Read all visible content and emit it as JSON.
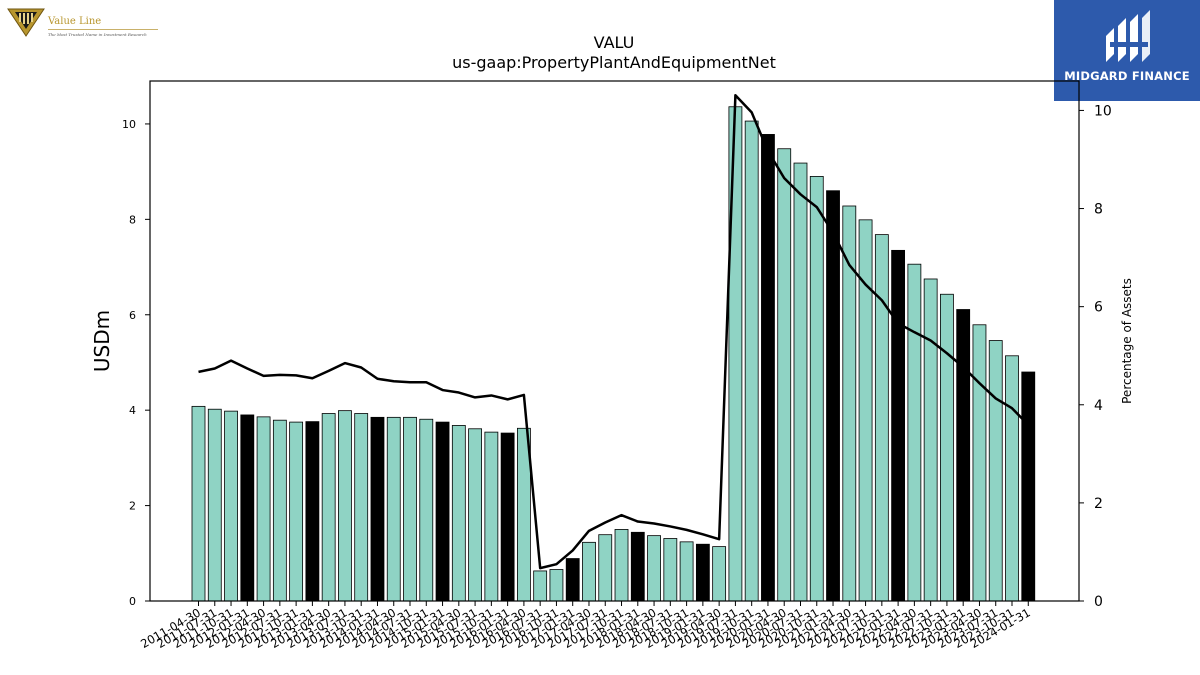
{
  "brand_left": {
    "name": "Value Line",
    "tagline": "The Most Trusted Name in Investment Research"
  },
  "brand_right": {
    "name": "MIDGARD FINANCE"
  },
  "colors": {
    "bar_default": "#8fd3c4",
    "bar_highlight": "#000000",
    "line": "#000000",
    "brand_right_bg": "#2d5aac",
    "brand_left_gold": "#b8962e"
  },
  "chart_data": {
    "type": "bar",
    "title": "VALU",
    "subtitle": "us-gaap:PropertyPlantAndEquipmentNet",
    "ylabel": "USDm",
    "y2label": "Percentage of Assets",
    "ylim": [
      0,
      10.9
    ],
    "y2lim": [
      0,
      10.6
    ],
    "yticks": [
      "0",
      "2",
      "4",
      "6",
      "8",
      "10"
    ],
    "y2ticks": [
      "0",
      "2",
      "4",
      "6",
      "8",
      "10"
    ],
    "categories": [
      "2011-04-30",
      "2011-07-31",
      "2011-10-31",
      "2012-01-31",
      "2012-04-30",
      "2012-07-31",
      "2012-10-31",
      "2013-01-31",
      "2013-04-30",
      "2013-07-31",
      "2013-10-31",
      "2014-01-31",
      "2014-04-30",
      "2014-07-31",
      "2014-10-31",
      "2015-01-31",
      "2015-04-30",
      "2015-07-31",
      "2015-10-31",
      "2016-01-31",
      "2016-04-30",
      "2016-07-31",
      "2016-10-31",
      "2017-01-31",
      "2017-04-30",
      "2017-07-31",
      "2017-10-31",
      "2018-01-31",
      "2018-04-30",
      "2018-07-31",
      "2018-10-31",
      "2019-01-31",
      "2019-04-30",
      "2019-07-31",
      "2019-10-31",
      "2020-01-31",
      "2020-04-30",
      "2020-07-31",
      "2020-10-31",
      "2021-01-31",
      "2021-04-30",
      "2021-07-31",
      "2021-10-31",
      "2022-01-31",
      "2022-04-30",
      "2022-07-31",
      "2022-10-31",
      "2023-01-31",
      "2023-04-30",
      "2023-07-31",
      "2023-10-31",
      "2024-01-31"
    ],
    "series": [
      {
        "kind": "bar",
        "axis": "left",
        "values": [
          4.08,
          4.02,
          3.98,
          3.9,
          3.86,
          3.79,
          3.75,
          3.76,
          3.93,
          3.99,
          3.93,
          3.85,
          3.85,
          3.85,
          3.81,
          3.75,
          3.68,
          3.61,
          3.54,
          3.52,
          3.62,
          0.63,
          0.66,
          0.89,
          1.23,
          1.39,
          1.5,
          1.44,
          1.37,
          1.31,
          1.24,
          1.19,
          1.14,
          10.36,
          10.06,
          9.78,
          9.48,
          9.18,
          8.9,
          8.6,
          8.28,
          7.99,
          7.68,
          7.35,
          7.06,
          6.75,
          6.43,
          6.11,
          5.79,
          5.46,
          5.14,
          4.8
        ],
        "highlight": [
          false,
          false,
          false,
          true,
          false,
          false,
          false,
          true,
          false,
          false,
          false,
          true,
          false,
          false,
          false,
          true,
          false,
          false,
          false,
          true,
          false,
          false,
          false,
          true,
          false,
          false,
          false,
          true,
          false,
          false,
          false,
          true,
          false,
          false,
          false,
          true,
          false,
          false,
          false,
          true,
          false,
          false,
          false,
          true,
          false,
          false,
          false,
          true,
          false,
          false,
          false,
          true
        ]
      },
      {
        "kind": "line",
        "axis": "right",
        "values": [
          4.67,
          4.74,
          4.9,
          4.74,
          4.59,
          4.61,
          4.6,
          4.54,
          4.69,
          4.85,
          4.76,
          4.53,
          4.48,
          4.46,
          4.46,
          4.3,
          4.25,
          4.15,
          4.19,
          4.11,
          4.2,
          0.67,
          0.75,
          1.03,
          1.43,
          1.6,
          1.75,
          1.62,
          1.58,
          1.52,
          1.45,
          1.36,
          1.26,
          10.31,
          9.96,
          9.17,
          8.62,
          8.29,
          8.03,
          7.51,
          6.85,
          6.45,
          6.13,
          5.66,
          5.48,
          5.31,
          5.05,
          4.77,
          4.44,
          4.13,
          3.93,
          3.59
        ]
      }
    ],
    "grid": false,
    "legend": "none"
  }
}
